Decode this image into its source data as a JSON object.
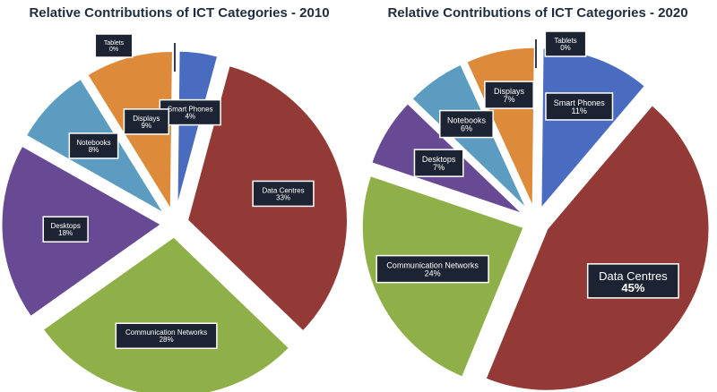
{
  "chart_data": [
    {
      "type": "pie",
      "title": "Relative Contributions of ICT Categories - 2010",
      "slices": [
        {
          "label": "Smart Phones",
          "value": 4,
          "value_label": "4%",
          "color": "#4a6cc0"
        },
        {
          "label": "Data Centres",
          "value": 33,
          "value_label": "33%",
          "color": "#933a37"
        },
        {
          "label": "Communication Networks",
          "value": 28,
          "value_label": "28%",
          "color": "#8fb048"
        },
        {
          "label": "Desktops",
          "value": 18,
          "value_label": "18%",
          "color": "#674a93"
        },
        {
          "label": "Notebooks",
          "value": 8,
          "value_label": "8%",
          "color": "#5b9cc0"
        },
        {
          "label": "Displays",
          "value": 9,
          "value_label": "9%",
          "color": "#dd8a3a"
        },
        {
          "label": "Tablets",
          "value": 0,
          "value_label": "0%",
          "color": "#2d3b56"
        }
      ]
    },
    {
      "type": "pie",
      "title": "Relative Contributions of ICT Categories - 2020",
      "slices": [
        {
          "label": "Smart Phones",
          "value": 11,
          "value_label": "11%",
          "color": "#4a6cc0"
        },
        {
          "label": "Data Centres",
          "value": 45,
          "value_label": "45%",
          "color": "#933a37"
        },
        {
          "label": "Communication Networks",
          "value": 24,
          "value_label": "24%",
          "color": "#8fb048"
        },
        {
          "label": "Desktops",
          "value": 7,
          "value_label": "7%",
          "color": "#674a93"
        },
        {
          "label": "Notebooks",
          "value": 6,
          "value_label": "6%",
          "color": "#5b9cc0"
        },
        {
          "label": "Displays",
          "value": 7,
          "value_label": "7%",
          "color": "#dd8a3a"
        },
        {
          "label": "Tablets",
          "value": 0,
          "value_label": "0%",
          "color": "#2d3b56"
        }
      ]
    }
  ]
}
